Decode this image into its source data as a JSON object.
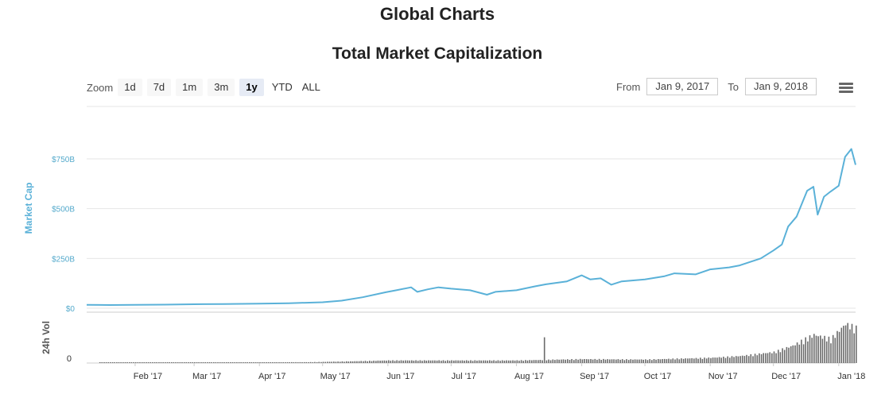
{
  "page": {
    "title": "Global Charts"
  },
  "chart": {
    "title": "Total Market Capitalization",
    "zoom_label": "Zoom",
    "zoom_buttons": [
      "1d",
      "7d",
      "1m",
      "3m",
      "1y",
      "YTD",
      "ALL"
    ],
    "zoom_active": "1y",
    "from_label": "From",
    "from_value": "Jan 9, 2017",
    "to_label": "To",
    "to_value": "Jan 9, 2018",
    "menu_icon": "hamburger-menu-icon"
  },
  "chart_data": {
    "type": "line",
    "title": "Total Market Capitalization",
    "colors": {
      "market_cap": "#5ab1d8",
      "volume": "#6b6b6b",
      "grid": "#e6e6e6"
    },
    "x_ticks": [
      "Feb '17",
      "Mar '17",
      "Apr '17",
      "May '17",
      "Jun '17",
      "Jul '17",
      "Aug '17",
      "Sep '17",
      "Oct '17",
      "Nov '17",
      "Dec '17",
      "Jan '18"
    ],
    "x_range": [
      "2017-01-09",
      "2018-01-09"
    ],
    "market_cap": {
      "ylabel": "Market Cap",
      "y_ticks": [
        "$0",
        "$250B",
        "$500B",
        "$750B"
      ],
      "ylim": [
        0,
        750
      ],
      "unit": "B USD",
      "points": [
        [
          "2017-01-09",
          17
        ],
        [
          "2017-01-20",
          16
        ],
        [
          "2017-02-01",
          17
        ],
        [
          "2017-02-15",
          18
        ],
        [
          "2017-03-01",
          20
        ],
        [
          "2017-03-15",
          21
        ],
        [
          "2017-04-01",
          23
        ],
        [
          "2017-04-15",
          25
        ],
        [
          "2017-05-01",
          30
        ],
        [
          "2017-05-10",
          38
        ],
        [
          "2017-05-20",
          55
        ],
        [
          "2017-05-31",
          80
        ],
        [
          "2017-06-05",
          90
        ],
        [
          "2017-06-12",
          105
        ],
        [
          "2017-06-15",
          82
        ],
        [
          "2017-06-20",
          95
        ],
        [
          "2017-06-25",
          105
        ],
        [
          "2017-07-01",
          98
        ],
        [
          "2017-07-10",
          90
        ],
        [
          "2017-07-15",
          76
        ],
        [
          "2017-07-18",
          68
        ],
        [
          "2017-07-22",
          82
        ],
        [
          "2017-08-01",
          90
        ],
        [
          "2017-08-10",
          110
        ],
        [
          "2017-08-15",
          120
        ],
        [
          "2017-08-25",
          135
        ],
        [
          "2017-09-01",
          165
        ],
        [
          "2017-09-05",
          145
        ],
        [
          "2017-09-10",
          150
        ],
        [
          "2017-09-15",
          118
        ],
        [
          "2017-09-20",
          135
        ],
        [
          "2017-10-01",
          145
        ],
        [
          "2017-10-10",
          160
        ],
        [
          "2017-10-15",
          175
        ],
        [
          "2017-10-25",
          170
        ],
        [
          "2017-11-01",
          195
        ],
        [
          "2017-11-10",
          205
        ],
        [
          "2017-11-15",
          215
        ],
        [
          "2017-11-25",
          250
        ],
        [
          "2017-12-01",
          290
        ],
        [
          "2017-12-05",
          320
        ],
        [
          "2017-12-08",
          410
        ],
        [
          "2017-12-12",
          460
        ],
        [
          "2017-12-17",
          590
        ],
        [
          "2017-12-20",
          610
        ],
        [
          "2017-12-22",
          470
        ],
        [
          "2017-12-25",
          560
        ],
        [
          "2017-12-28",
          585
        ],
        [
          "2018-01-01",
          615
        ],
        [
          "2018-01-04",
          760
        ],
        [
          "2018-01-07",
          800
        ],
        [
          "2018-01-09",
          720
        ]
      ]
    },
    "volume": {
      "ylabel": "24h Vol",
      "y_ticks": [
        "0"
      ],
      "spike": {
        "date": "2017-08-14",
        "relative": 0.55
      },
      "levels": [
        [
          "2017-01-09",
          0.0
        ],
        [
          "2017-04-25",
          0.02
        ],
        [
          "2017-05-15",
          0.04
        ],
        [
          "2017-06-01",
          0.06
        ],
        [
          "2017-07-01",
          0.06
        ],
        [
          "2017-08-01",
          0.06
        ],
        [
          "2017-09-01",
          0.09
        ],
        [
          "2017-10-01",
          0.08
        ],
        [
          "2017-11-01",
          0.12
        ],
        [
          "2017-11-15",
          0.16
        ],
        [
          "2017-12-01",
          0.25
        ],
        [
          "2017-12-10",
          0.4
        ],
        [
          "2017-12-20",
          0.65
        ],
        [
          "2017-12-28",
          0.55
        ],
        [
          "2018-01-04",
          0.9
        ],
        [
          "2018-01-09",
          0.8
        ]
      ]
    }
  }
}
